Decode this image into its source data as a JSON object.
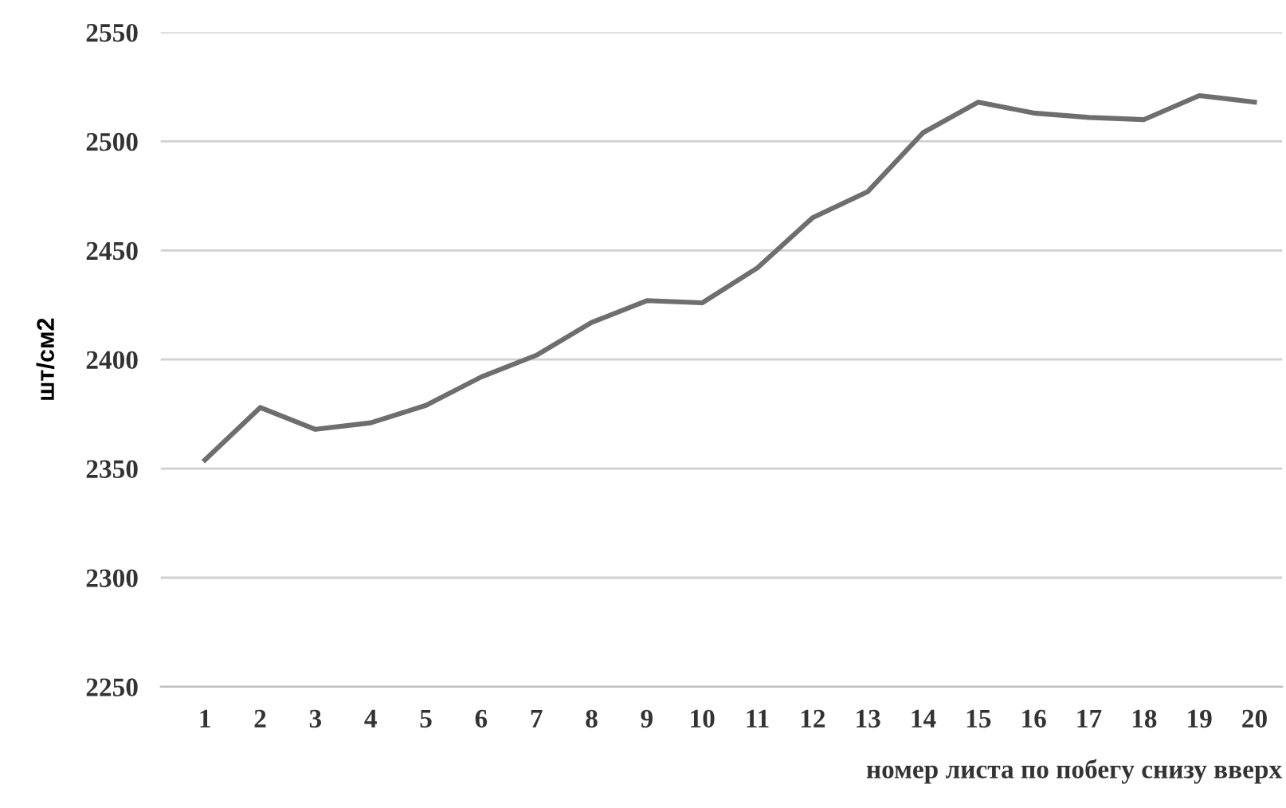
{
  "chart_data": {
    "type": "line",
    "xlabel": "номер листа по побегу снизу вверх",
    "ylabel": "шт/см2",
    "categories": [
      "1",
      "2",
      "3",
      "4",
      "5",
      "6",
      "7",
      "8",
      "9",
      "10",
      "11",
      "12",
      "13",
      "14",
      "15",
      "16",
      "17",
      "18",
      "19",
      "20"
    ],
    "series": [
      {
        "color": "#6e6e6e",
        "values": [
          2354,
          2378,
          2368,
          2371,
          2379,
          2392,
          2402,
          2417,
          2427,
          2426,
          2442,
          2465,
          2477,
          2504,
          2518,
          2513,
          2511,
          2510,
          2521,
          2518
        ]
      }
    ],
    "ylim": [
      2250,
      2550
    ],
    "yticks": [
      2250,
      2300,
      2350,
      2400,
      2450,
      2500,
      2550
    ],
    "grid": "y",
    "legend": false,
    "marker": "none",
    "line_style": "solid"
  }
}
